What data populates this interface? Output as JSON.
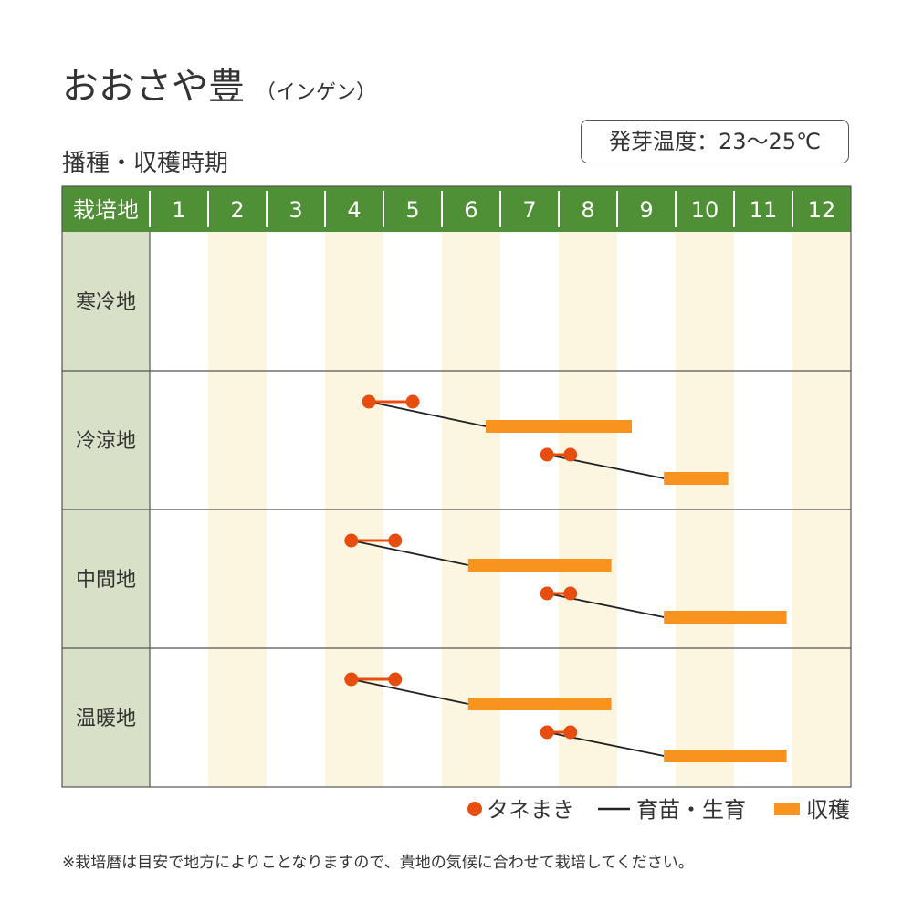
{
  "title": {
    "main": "おおさや豊",
    "sub": "（インゲン）"
  },
  "subheading": "播種・収穫時期",
  "badge": "発芽温度：23～25℃",
  "note": "※栽培暦は目安で地方によりことなりますので、貴地の気候に合わせて栽培してください。",
  "colors": {
    "header_bg": "#4f8f35",
    "region_bg": "#d8e0c8",
    "stripe": "#fcf6e0",
    "sowing": "#e84d10",
    "nursery": "#222222",
    "harvest": "#f7931e",
    "border": "#555555"
  },
  "chart_data": {
    "type": "gantt",
    "header_label": "栽培地",
    "months": [
      "1",
      "2",
      "3",
      "4",
      "5",
      "6",
      "7",
      "8",
      "9",
      "10",
      "11",
      "12"
    ],
    "regions": [
      {
        "name": "寒冷地",
        "schedules": []
      },
      {
        "name": "冷涼地",
        "schedules": [
          {
            "sow": [
              4.75,
              5.5
            ],
            "harvest": [
              6.75,
              9.25
            ]
          },
          {
            "sow": [
              7.8,
              8.2
            ],
            "harvest": [
              9.8,
              10.9
            ]
          }
        ]
      },
      {
        "name": "中間地",
        "schedules": [
          {
            "sow": [
              4.45,
              5.2
            ],
            "harvest": [
              6.45,
              8.9
            ]
          },
          {
            "sow": [
              7.8,
              8.2
            ],
            "harvest": [
              9.8,
              11.9
            ]
          }
        ]
      },
      {
        "name": "温暖地",
        "schedules": [
          {
            "sow": [
              4.45,
              5.2
            ],
            "harvest": [
              6.45,
              8.9
            ]
          },
          {
            "sow": [
              7.8,
              8.2
            ],
            "harvest": [
              9.8,
              11.9
            ]
          }
        ]
      }
    ],
    "legend": [
      {
        "kind": "sowing",
        "label": "タネまき"
      },
      {
        "kind": "nursery",
        "label": "育苗・生育"
      },
      {
        "kind": "harvest",
        "label": "収穫"
      }
    ]
  }
}
